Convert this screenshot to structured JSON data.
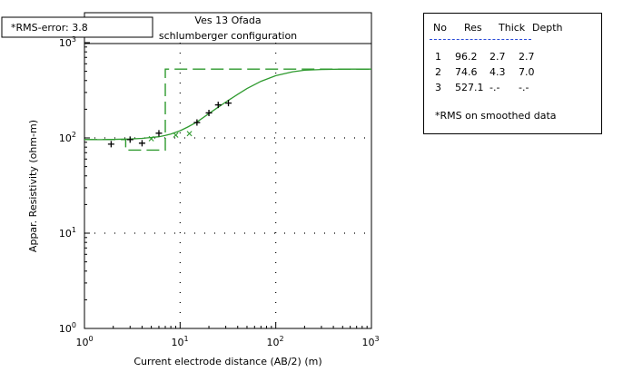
{
  "rms_badge": "*RMS-error: 3.8",
  "chart_data": {
    "type": "line",
    "title": "Ves 13 Ofada",
    "subtitle": "schlumberger configuration",
    "xlabel": "Current electrode distance (AB/2) (m)",
    "ylabel": "Appar. Resistivity (ohm-m)",
    "xscale": "log",
    "yscale": "log",
    "xlim": [
      1,
      1000
    ],
    "ylim": [
      1,
      1000
    ],
    "x_ticks": [
      {
        "base": "10",
        "exp": "0"
      },
      {
        "base": "10",
        "exp": "1"
      },
      {
        "base": "10",
        "exp": "2"
      },
      {
        "base": "10",
        "exp": "3"
      }
    ],
    "y_ticks": [
      {
        "base": "10",
        "exp": "0"
      },
      {
        "base": "10",
        "exp": "1"
      },
      {
        "base": "10",
        "exp": "2"
      },
      {
        "base": "10",
        "exp": "3"
      }
    ],
    "grid": "dotted at decades",
    "line_color": "#2e9a2e",
    "series": [
      {
        "style": "dashed-step",
        "x": [
          1,
          2.7,
          2.7,
          7.0,
          7.0,
          1000
        ],
        "y": [
          96.2,
          96.2,
          74.6,
          74.6,
          527.1,
          527.1
        ]
      },
      {
        "style": "smooth-curve",
        "x": [
          1,
          1.5,
          2,
          3,
          4,
          5,
          6,
          7,
          8,
          10,
          12,
          15,
          20,
          25,
          30,
          40,
          50,
          70,
          100,
          150,
          200,
          300,
          500,
          1000
        ],
        "y": [
          96,
          96,
          96.5,
          97.5,
          99,
          101,
          103,
          106,
          110,
          119,
          130,
          147,
          180,
          210,
          238,
          287,
          330,
          393,
          450,
          495,
          513,
          523,
          527,
          527
        ]
      },
      {
        "style": "field-points",
        "marker": "+",
        "x": [
          1.9,
          3.0,
          4.0,
          6.0,
          15,
          20,
          25,
          32
        ],
        "y": [
          86,
          96,
          88,
          112,
          145,
          183,
          222,
          232
        ]
      },
      {
        "style": "smoothed-points",
        "marker": "x",
        "x": [
          5.0,
          9.0,
          12.5
        ],
        "y": [
          98,
          107,
          111
        ]
      }
    ]
  },
  "legend": {
    "headers": [
      "No",
      "Res",
      "Thick",
      "Depth"
    ],
    "rows": [
      [
        "1",
        "96.2",
        "2.7",
        "2.7"
      ],
      [
        "2",
        "74.6",
        "4.3",
        "7.0"
      ],
      [
        "3",
        "527.1",
        "-.-",
        "-.-"
      ]
    ],
    "note": "*RMS on smoothed data"
  }
}
